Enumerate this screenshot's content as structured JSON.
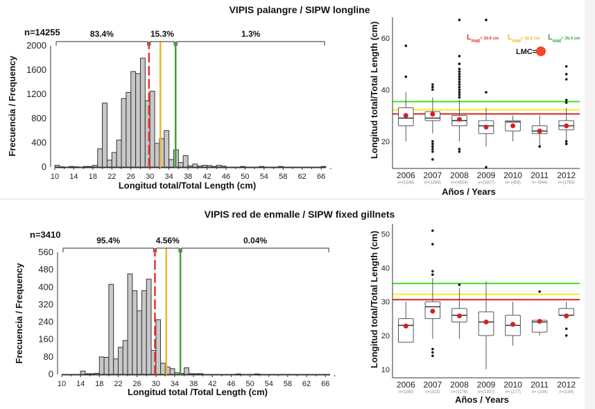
{
  "colors": {
    "red": "#e8332a",
    "orange": "#f0b429",
    "green": "#3aa33a",
    "hline_green": "#44dd22",
    "hline_yellow": "#f2ee22",
    "hline_red": "#e02020",
    "mean_dot": "#d42020",
    "lmc_dot": "#f04a2a"
  },
  "chart_data": [
    {
      "id": "hist-longline",
      "type": "bar",
      "title": "VIPIS palangre / SIPW longline",
      "n_label": "n=14255",
      "xlabel": "Longitud total/Total Length (cm)",
      "ylabel": "Frecuencia / Frequency",
      "xlim": [
        10,
        67
      ],
      "ylim": [
        0,
        2000
      ],
      "xticks": [
        10,
        14,
        18,
        22,
        26,
        30,
        34,
        38,
        42,
        46,
        50,
        54,
        58,
        62,
        66
      ],
      "yticks": [
        0,
        400,
        800,
        1200,
        1600,
        2000
      ],
      "bin_width": 1,
      "bins_start": [
        10,
        11,
        12,
        13,
        14,
        15,
        16,
        17,
        18,
        19,
        20,
        21,
        22,
        23,
        24,
        25,
        26,
        27,
        28,
        29,
        30,
        31,
        32,
        33,
        34,
        35,
        36,
        37,
        38,
        39,
        40,
        41,
        42,
        43,
        44,
        45,
        46,
        47,
        48,
        49,
        50,
        51,
        52,
        53,
        54,
        55,
        56,
        57,
        58,
        59,
        60,
        61,
        62,
        63,
        64,
        65,
        66
      ],
      "values": [
        30,
        5,
        0,
        10,
        5,
        0,
        10,
        10,
        30,
        300,
        1055,
        115,
        240,
        445,
        1130,
        1230,
        1575,
        1540,
        1795,
        1095,
        1250,
        390,
        470,
        600,
        125,
        285,
        75,
        190,
        20,
        50,
        15,
        30,
        25,
        10,
        30,
        15,
        0,
        0,
        0,
        10,
        0,
        0,
        0,
        10,
        0,
        0,
        0,
        10,
        0,
        0,
        0,
        0,
        0,
        0,
        0,
        0,
        10
      ],
      "threshold_lines": [
        {
          "label": "Lmat",
          "value": 29.8,
          "color": "#e8332a",
          "style": "dashed"
        },
        {
          "label": "Lmat",
          "value": 32.2,
          "color": "#f0b429",
          "style": "solid"
        },
        {
          "label": "Lmat",
          "value": 35.4,
          "color": "#3aa33a",
          "style": "solid"
        }
      ],
      "brackets": [
        {
          "from": 10,
          "to": 29.8,
          "label": "83.4%"
        },
        {
          "from": 29.8,
          "to": 35.4,
          "label": "15.3%"
        },
        {
          "from": 35.4,
          "to": 67,
          "label": "1.3%"
        }
      ]
    },
    {
      "id": "box-longline",
      "type": "boxplot",
      "xlabel": "Años / Years",
      "ylabel": "Longitud total/Total Length (cm)",
      "ylim": [
        9.5,
        68
      ],
      "yticks": [
        20,
        40,
        60
      ],
      "categories": [
        "2006",
        "2007",
        "2008",
        "2009",
        "2010",
        "2011",
        "2012"
      ],
      "n_labels": [
        "n=(1548)",
        "n=(1288)",
        "n=(4924)",
        "n=(3307)",
        "n= (459)",
        "n= (944)",
        "n=(1785)"
      ],
      "boxes": [
        {
          "q1": 26,
          "median": 29,
          "q3": 33,
          "lo": 20,
          "hi": 39,
          "mean": 30,
          "outliers": [
            45,
            57
          ]
        },
        {
          "q1": 28,
          "median": 29,
          "q3": 31.5,
          "lo": 23,
          "hi": 37,
          "mean": 30.5,
          "outliers": [
            13,
            16,
            17,
            18,
            19,
            20,
            40,
            41,
            42
          ]
        },
        {
          "q1": 26,
          "median": 28,
          "q3": 30,
          "lo": 20,
          "hi": 36,
          "mean": 28.5,
          "outliers": [
            16,
            17,
            37,
            38,
            39,
            40,
            41,
            42,
            43,
            44,
            45,
            46,
            47,
            48,
            50,
            53,
            67
          ]
        },
        {
          "q1": 23,
          "median": 26,
          "q3": 28,
          "lo": 18,
          "hi": 33,
          "mean": 25.5,
          "outliers": [
            10,
            39,
            67
          ]
        },
        {
          "q1": 24,
          "median": 27.5,
          "q3": 28,
          "lo": 20,
          "hi": 30,
          "mean": 26,
          "outliers": []
        },
        {
          "q1": 23,
          "median": 24,
          "q3": 26,
          "lo": 18,
          "hi": 30,
          "mean": 24,
          "outliers": [
            18
          ]
        },
        {
          "q1": 24.5,
          "median": 26,
          "q3": 28,
          "lo": 20,
          "hi": 33,
          "mean": 26,
          "outliers": [
            19,
            20,
            35,
            36,
            44,
            46,
            49
          ]
        }
      ],
      "hlines": [
        {
          "value": 35.4,
          "color": "#44dd22"
        },
        {
          "value": 32.2,
          "color": "#f2ee22"
        },
        {
          "value": 30.6,
          "color": "#e02020"
        }
      ],
      "legend": {
        "items": [
          {
            "main": "L",
            "sub": "mat",
            "text": "= 30.6 cm",
            "color": "#e8332a"
          },
          {
            "main": "L",
            "sub": "mat",
            "text": "= 32.2 cm",
            "color": "#f0b429"
          },
          {
            "main": "L",
            "sub": "mat",
            "text": "= 35.4 cm",
            "color": "#3aa33a"
          }
        ],
        "lmc_label": "LMC=",
        "placement": "top-right"
      }
    },
    {
      "id": "hist-gillnet",
      "type": "bar",
      "title": "VIPIS red de enmalle / SIPW fixed gillnets",
      "n_label": "n=3410",
      "xlabel": "Longitud total /Total Length  (cm)",
      "ylabel": "Frecuencia / Frequency",
      "xlim": [
        10,
        67
      ],
      "ylim": [
        0,
        560
      ],
      "xticks": [
        10,
        14,
        18,
        22,
        26,
        30,
        34,
        38,
        42,
        46,
        50,
        54,
        58,
        62,
        66
      ],
      "yticks": [
        0,
        80,
        160,
        240,
        320,
        400,
        480,
        560
      ],
      "bin_width": 1,
      "bins_start": [
        10,
        11,
        12,
        13,
        14,
        15,
        16,
        17,
        18,
        19,
        20,
        21,
        22,
        23,
        24,
        25,
        26,
        27,
        28,
        29,
        30,
        31,
        32,
        33,
        34,
        35,
        36,
        37,
        38,
        39,
        40,
        41,
        42,
        43,
        44,
        45,
        46,
        47,
        48,
        49,
        50,
        51,
        52,
        53,
        54,
        55,
        56,
        57,
        58,
        59,
        60,
        61,
        62,
        63,
        64,
        65,
        66
      ],
      "values": [
        0,
        0,
        0,
        0,
        15,
        3,
        3,
        5,
        80,
        78,
        413,
        71,
        124,
        155,
        461,
        384,
        292,
        384,
        437,
        110,
        251,
        51,
        34,
        26,
        7,
        4,
        30,
        3,
        3,
        3,
        0,
        0,
        0,
        0,
        0,
        0,
        0,
        2,
        0,
        0,
        0,
        2,
        0,
        0,
        0,
        0,
        0,
        0,
        0,
        0,
        0,
        0,
        0,
        0,
        0,
        0,
        0
      ],
      "threshold_lines": [
        {
          "label": "Lmat",
          "value": 29.8,
          "color": "#e8332a",
          "style": "dashed"
        },
        {
          "label": "Lmat",
          "value": 32.2,
          "color": "#f0b429",
          "style": "solid"
        },
        {
          "label": "Lmat",
          "value": 35.2,
          "color": "#3aa33a",
          "style": "solid"
        }
      ],
      "brackets": [
        {
          "from": 10,
          "to": 29.8,
          "label": "95.4%"
        },
        {
          "from": 29.8,
          "to": 35.2,
          "label": "4.56%"
        },
        {
          "from": 35.2,
          "to": 67,
          "label": "0.04%"
        }
      ]
    },
    {
      "id": "box-gillnet",
      "type": "boxplot",
      "xlabel": "Años / Years",
      "ylabel": "Longitud total/Total Length (cm)",
      "ylim": [
        7.5,
        53
      ],
      "yticks": [
        10,
        20,
        30,
        40,
        50
      ],
      "categories": [
        "2006",
        "2007",
        "2008",
        "2009",
        "2010",
        "2011",
        "2012"
      ],
      "n_labels": [
        "n=(199)",
        "n=(313)",
        "n=(1176)",
        "n=(1307)",
        "n= (177)",
        "n= (104)",
        "n=(134)"
      ],
      "boxes": [
        {
          "q1": 18,
          "median": 23,
          "q3": 25,
          "lo": 18,
          "hi": 30,
          "mean": 22.8,
          "outliers": []
        },
        {
          "q1": 25,
          "median": 28.5,
          "q3": 30,
          "lo": 19,
          "hi": 37,
          "mean": 27.2,
          "outliers": [
            14,
            15,
            16,
            38,
            39,
            47,
            51
          ]
        },
        {
          "q1": 24,
          "median": 26,
          "q3": 28,
          "lo": 19,
          "hi": 34,
          "mean": 25.8,
          "outliers": [
            35
          ]
        },
        {
          "q1": 20,
          "median": 24,
          "q3": 27,
          "lo": 10,
          "hi": 36,
          "mean": 24,
          "outliers": []
        },
        {
          "q1": 20,
          "median": 23,
          "q3": 26,
          "lo": 17,
          "hi": 30,
          "mean": 23.3,
          "outliers": []
        },
        {
          "q1": 21,
          "median": 24,
          "q3": 24.5,
          "lo": 20,
          "hi": 24.5,
          "mean": 24.2,
          "outliers": [
            33
          ]
        },
        {
          "q1": 26,
          "median": 26,
          "q3": 28,
          "lo": 25,
          "hi": 30,
          "mean": 25.8,
          "outliers": [
            20,
            22
          ]
        }
      ],
      "hlines": [
        {
          "value": 35.4,
          "color": "#44dd22"
        },
        {
          "value": 32.2,
          "color": "#f2ee22"
        },
        {
          "value": 30.6,
          "color": "#e02020"
        }
      ]
    }
  ]
}
